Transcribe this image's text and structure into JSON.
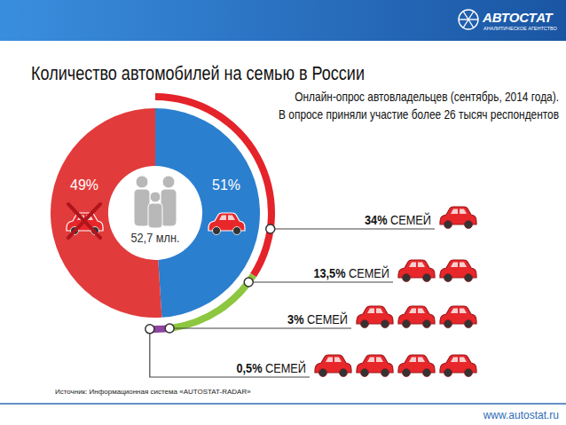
{
  "header": {
    "brand": "АВТОСТАТ",
    "tagline": "АНАЛИТИЧЕСКОЕ АГЕНТСТВО"
  },
  "chart_data": {
    "type": "pie",
    "title": "Количество автомобилей на семью в России",
    "subtitle": [
      "Онлайн-опрос автовладельцев (сентябрь, 2014 года).",
      "В опросе приняли участие более 26 тысяч респондентов"
    ],
    "values": [
      49,
      51
    ],
    "value_labels": [
      "49%",
      "51%"
    ],
    "colors": [
      "#2b7fcf",
      "#e23b3b"
    ],
    "data_labels": true,
    "center_label": "52,7 млн.",
    "breakdown": {
      "values": [
        34,
        13.5,
        3,
        0.5
      ],
      "value_labels": [
        "34%",
        "13,5%",
        "3%",
        "0,5%"
      ],
      "label_suffix": "СЕМЕЙ",
      "cars": [
        1,
        2,
        3,
        4
      ],
      "colors": [
        "#e4232a",
        "#8dc63f",
        "#8e44a0",
        "#6d2a86"
      ],
      "car_color": "#e8272b"
    },
    "source": "Источник: Информационная система «AUTOSTAT-RADAR»"
  },
  "footer": {
    "url": "www.autostat.ru"
  }
}
